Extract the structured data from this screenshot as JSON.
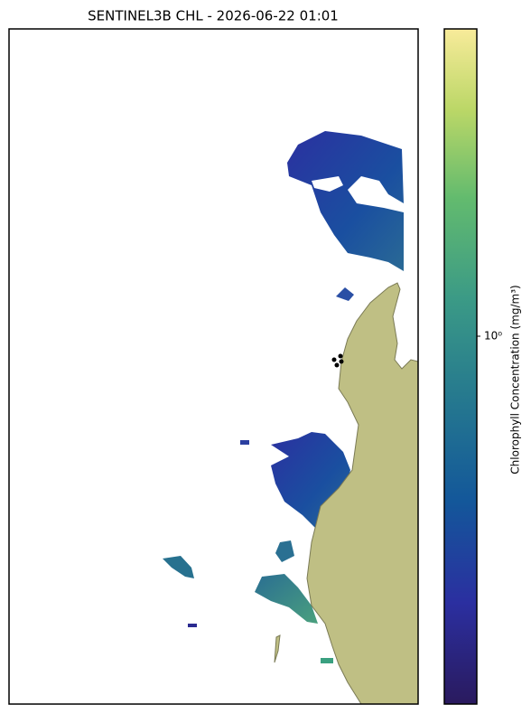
{
  "title": "SENTINEL3B CHL - 2026-06-22 01:01",
  "colorbar": {
    "label": "Chlorophyll Concentration (mg/m³)",
    "tick_labels": [
      "10⁰"
    ]
  }
}
